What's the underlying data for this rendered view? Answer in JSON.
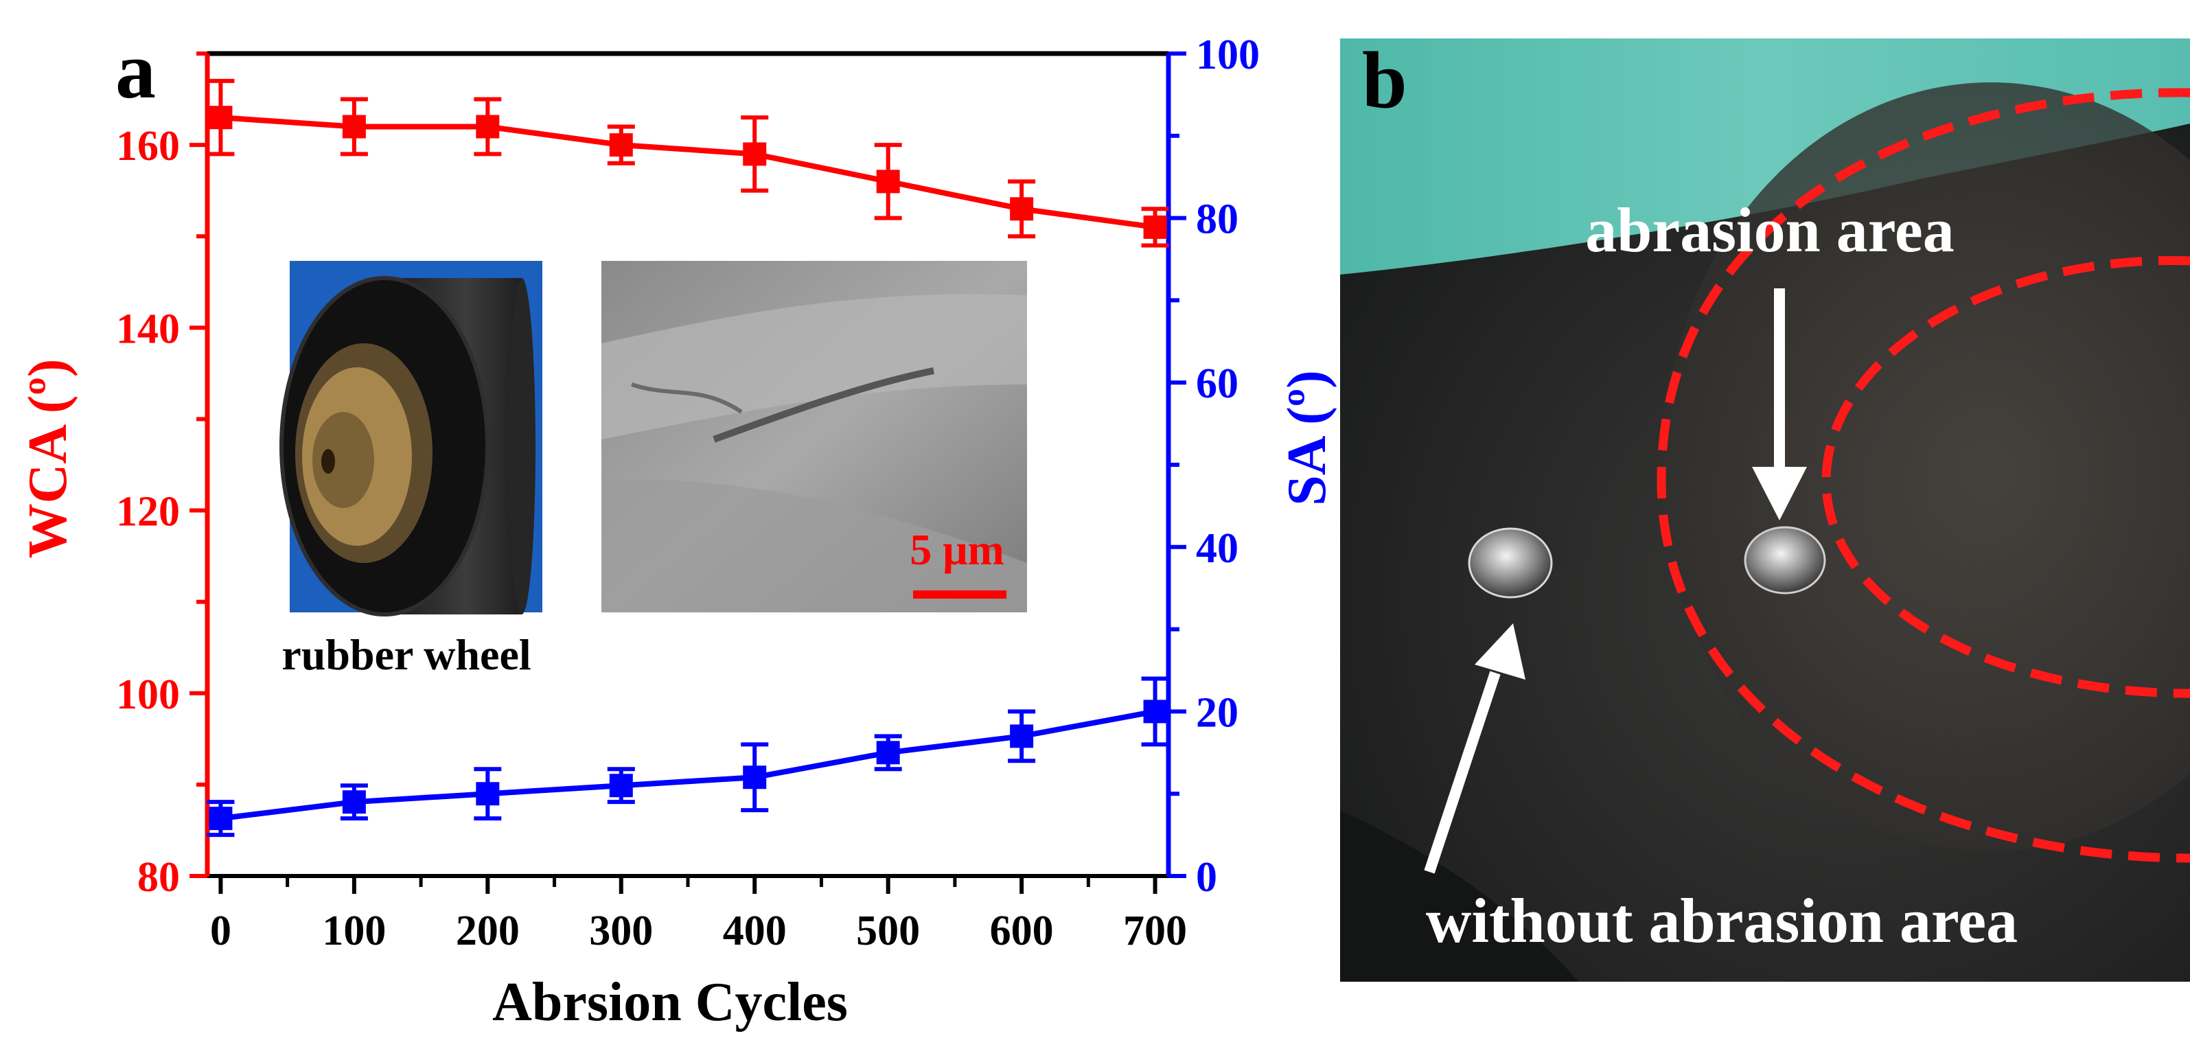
{
  "panels": {
    "a": "a",
    "b": "b"
  },
  "chart_data": {
    "type": "line",
    "xlabel": "Abrsion Cycles",
    "y_left_label": "WCA (º)",
    "y_right_label": "SA (º)",
    "x": [
      0,
      100,
      200,
      300,
      400,
      500,
      600,
      700
    ],
    "xlim": [
      -10,
      710
    ],
    "xticks": [
      0,
      100,
      200,
      300,
      400,
      500,
      600,
      700
    ],
    "y_left_lim": [
      80,
      170
    ],
    "y_left_ticks": [
      80,
      100,
      120,
      140,
      160
    ],
    "y_right_lim": [
      0,
      100
    ],
    "y_right_ticks": [
      0,
      20,
      40,
      60,
      80,
      100
    ],
    "series": [
      {
        "axis": "left",
        "color": "#ff0000",
        "values": [
          163,
          162,
          162,
          160,
          159,
          156,
          153,
          151
        ],
        "errors": [
          4,
          3,
          3,
          2,
          4,
          4,
          3,
          2
        ]
      },
      {
        "axis": "right",
        "color": "#0000ff",
        "values": [
          7,
          9,
          10,
          11,
          12,
          15,
          17,
          20
        ],
        "errors": [
          2,
          2,
          3,
          2,
          4,
          2,
          3,
          4
        ]
      }
    ]
  },
  "insets": {
    "rubber_wheel_label": "rubber wheel",
    "scale_bar_label": "5 μm"
  },
  "photo": {
    "abrasion_label": "abrasion area",
    "without_label": "without abrasion area"
  },
  "colors": {
    "left_axis": "#ff0000",
    "right_axis": "#0000ff",
    "dashed_outline": "#ff1a1a"
  }
}
